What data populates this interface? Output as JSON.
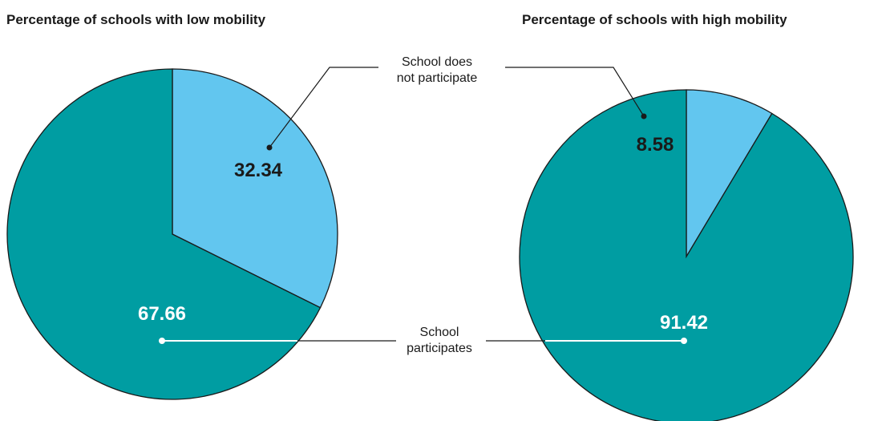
{
  "chart_data": [
    {
      "type": "pie",
      "title": "Percentage of schools with low mobility",
      "slices": [
        {
          "label": "School does not participate",
          "value": 32.34,
          "display": "32.34",
          "color": "#62c6ef",
          "label_color": "#1a1a1a"
        },
        {
          "label": "School participates",
          "value": 67.66,
          "display": "67.66",
          "color": "#009da2",
          "label_color": "#ffffff"
        }
      ]
    },
    {
      "type": "pie",
      "title": "Percentage of schools with high mobility",
      "slices": [
        {
          "label": "School does not participate",
          "value": 8.58,
          "display": "8.58",
          "color": "#62c6ef",
          "label_color": "#1a1a1a"
        },
        {
          "label": "School participates",
          "value": 91.42,
          "display": "91.42",
          "color": "#009da2",
          "label_color": "#ffffff"
        }
      ]
    }
  ],
  "callouts": {
    "not_participate": [
      "School does",
      "not participate"
    ],
    "participate": [
      "School",
      "participates"
    ]
  }
}
